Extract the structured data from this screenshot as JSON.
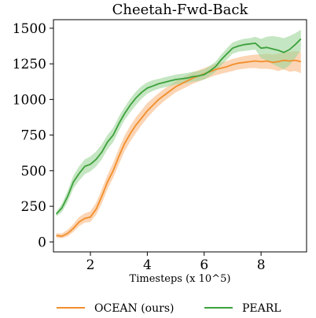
{
  "chart_data": {
    "type": "line",
    "title": "Cheetah-Fwd-Back",
    "xlabel": "Timesteps (x 10^5)",
    "ylabel": "",
    "xlim": [
      0.7,
      9.6
    ],
    "ylim": [
      -70,
      1560
    ],
    "xticks": [
      2,
      4,
      6,
      8
    ],
    "yticks": [
      0,
      250,
      500,
      750,
      1000,
      1250,
      1500
    ],
    "grid": false,
    "legend_position": "bottom",
    "series": [
      {
        "name": "OCEAN (ours)",
        "color": "#f28e2b",
        "band_color": "#f8b983",
        "x": [
          0.8,
          1.0,
          1.2,
          1.4,
          1.6,
          1.8,
          2.0,
          2.2,
          2.4,
          2.6,
          2.8,
          3.0,
          3.2,
          3.4,
          3.6,
          3.8,
          4.0,
          4.2,
          4.4,
          4.6,
          4.8,
          5.0,
          5.2,
          5.4,
          5.6,
          5.8,
          6.0,
          6.2,
          6.4,
          6.6,
          6.8,
          7.0,
          7.2,
          7.4,
          7.6,
          7.8,
          8.0,
          8.2,
          8.4,
          8.6,
          8.8,
          9.0,
          9.2,
          9.4
        ],
        "mean": [
          45,
          40,
          60,
          95,
          140,
          165,
          175,
          230,
          320,
          420,
          500,
          600,
          690,
          760,
          820,
          870,
          920,
          960,
          1000,
          1030,
          1060,
          1090,
          1110,
          1130,
          1150,
          1165,
          1180,
          1195,
          1210,
          1220,
          1230,
          1245,
          1255,
          1260,
          1265,
          1270,
          1265,
          1270,
          1260,
          1265,
          1275,
          1270,
          1275,
          1265
        ],
        "lower": [
          30,
          25,
          40,
          70,
          110,
          135,
          140,
          190,
          270,
          370,
          450,
          545,
          635,
          705,
          765,
          820,
          870,
          915,
          955,
          990,
          1020,
          1050,
          1070,
          1090,
          1110,
          1125,
          1140,
          1155,
          1170,
          1180,
          1190,
          1200,
          1210,
          1215,
          1220,
          1220,
          1215,
          1215,
          1210,
          1200,
          1210,
          1195,
          1200,
          1185
        ],
        "upper": [
          60,
          60,
          85,
          125,
          175,
          200,
          215,
          275,
          370,
          470,
          555,
          655,
          745,
          815,
          875,
          925,
          975,
          1010,
          1045,
          1075,
          1100,
          1130,
          1150,
          1170,
          1190,
          1205,
          1220,
          1235,
          1250,
          1260,
          1270,
          1285,
          1295,
          1305,
          1310,
          1315,
          1315,
          1320,
          1315,
          1320,
          1330,
          1335,
          1340,
          1335
        ]
      },
      {
        "name": "PEARL",
        "color": "#3ca13c",
        "band_color": "#9fd59a",
        "x": [
          0.8,
          1.0,
          1.2,
          1.4,
          1.6,
          1.8,
          2.0,
          2.2,
          2.4,
          2.6,
          2.8,
          3.0,
          3.2,
          3.4,
          3.6,
          3.8,
          4.0,
          4.2,
          4.4,
          4.6,
          4.8,
          5.0,
          5.2,
          5.4,
          5.6,
          5.8,
          6.0,
          6.2,
          6.4,
          6.6,
          6.8,
          7.0,
          7.2,
          7.4,
          7.6,
          7.8,
          8.0,
          8.2,
          8.4,
          8.6,
          8.8,
          9.0,
          9.2,
          9.4
        ],
        "mean": [
          195,
          240,
          320,
          420,
          480,
          530,
          545,
          580,
          630,
          700,
          750,
          830,
          900,
          960,
          1010,
          1050,
          1080,
          1095,
          1110,
          1120,
          1130,
          1140,
          1145,
          1150,
          1160,
          1165,
          1175,
          1200,
          1230,
          1280,
          1320,
          1360,
          1375,
          1385,
          1390,
          1395,
          1360,
          1365,
          1355,
          1345,
          1330,
          1350,
          1385,
          1425
        ],
        "lower": [
          180,
          210,
          280,
          375,
          430,
          475,
          495,
          530,
          580,
          650,
          700,
          780,
          855,
          910,
          960,
          1005,
          1040,
          1060,
          1075,
          1085,
          1095,
          1105,
          1110,
          1115,
          1125,
          1130,
          1140,
          1165,
          1195,
          1240,
          1280,
          1320,
          1335,
          1340,
          1345,
          1350,
          1290,
          1275,
          1250,
          1230,
          1210,
          1240,
          1290,
          1345
        ],
        "upper": [
          210,
          270,
          360,
          465,
          530,
          580,
          600,
          635,
          685,
          750,
          800,
          880,
          945,
          1005,
          1055,
          1095,
          1120,
          1135,
          1145,
          1155,
          1165,
          1175,
          1180,
          1185,
          1195,
          1200,
          1210,
          1235,
          1265,
          1315,
          1360,
          1400,
          1415,
          1425,
          1430,
          1440,
          1425,
          1440,
          1445,
          1440,
          1430,
          1445,
          1465,
          1490
        ]
      }
    ]
  }
}
